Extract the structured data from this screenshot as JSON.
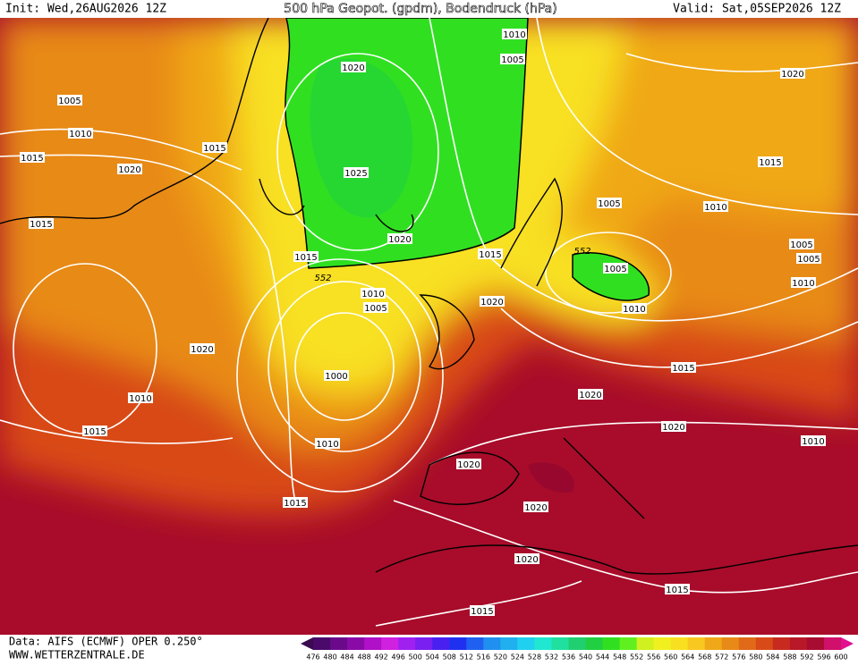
{
  "header": {
    "init": "Init: Wed,26AUG2026 12Z",
    "title": "500 hPa Geopot. (gpdm), Bodendruck (hPa)",
    "valid": "Valid: Sat,05SEP2026 12Z"
  },
  "map": {
    "isobar_labels": [
      "1010",
      "1005",
      "1020",
      "1020",
      "1005",
      "1010",
      "1015",
      "1015",
      "1015",
      "1020",
      "1025",
      "1005",
      "1010",
      "1015",
      "1020",
      "1005",
      "1015",
      "1015",
      "1005",
      "1005",
      "1010",
      "1010",
      "1005",
      "1020",
      "1010",
      "1020",
      "1015",
      "1000",
      "1020",
      "1010",
      "1020",
      "1015",
      "1010",
      "1010",
      "1020",
      "1015",
      "1020",
      "1020",
      "1015",
      "1015"
    ],
    "contour_labels": [
      "552",
      "552"
    ]
  },
  "colorbar": {
    "labels": [
      476,
      480,
      484,
      488,
      492,
      496,
      500,
      504,
      508,
      512,
      516,
      520,
      524,
      528,
      532,
      536,
      540,
      544,
      548,
      552,
      556,
      560,
      564,
      568,
      572,
      576,
      580,
      584,
      588,
      592,
      596,
      600
    ],
    "colors": [
      "#3b0a4f",
      "#4a0a6a",
      "#6a0a8a",
      "#8a0aa8",
      "#b010c8",
      "#d020e0",
      "#a020f0",
      "#7a20f0",
      "#4a20f0",
      "#2030f0",
      "#2060f0",
      "#2090f0",
      "#20b0f0",
      "#20d0f0",
      "#20e8d0",
      "#20e0a0",
      "#20d070",
      "#20d040",
      "#30e020",
      "#60f020",
      "#d0f020",
      "#f0f020",
      "#f8e020",
      "#f8c820",
      "#f0a818",
      "#e88a18",
      "#e06a18",
      "#d84a18",
      "#c82a20",
      "#b81828",
      "#a80c30",
      "#d0106a",
      "#e01090"
    ]
  },
  "footer": {
    "source": "Data: AIFS (ECMWF) OPER 0.250°",
    "site": "WWW.WETTERZENTRALE.DE"
  }
}
